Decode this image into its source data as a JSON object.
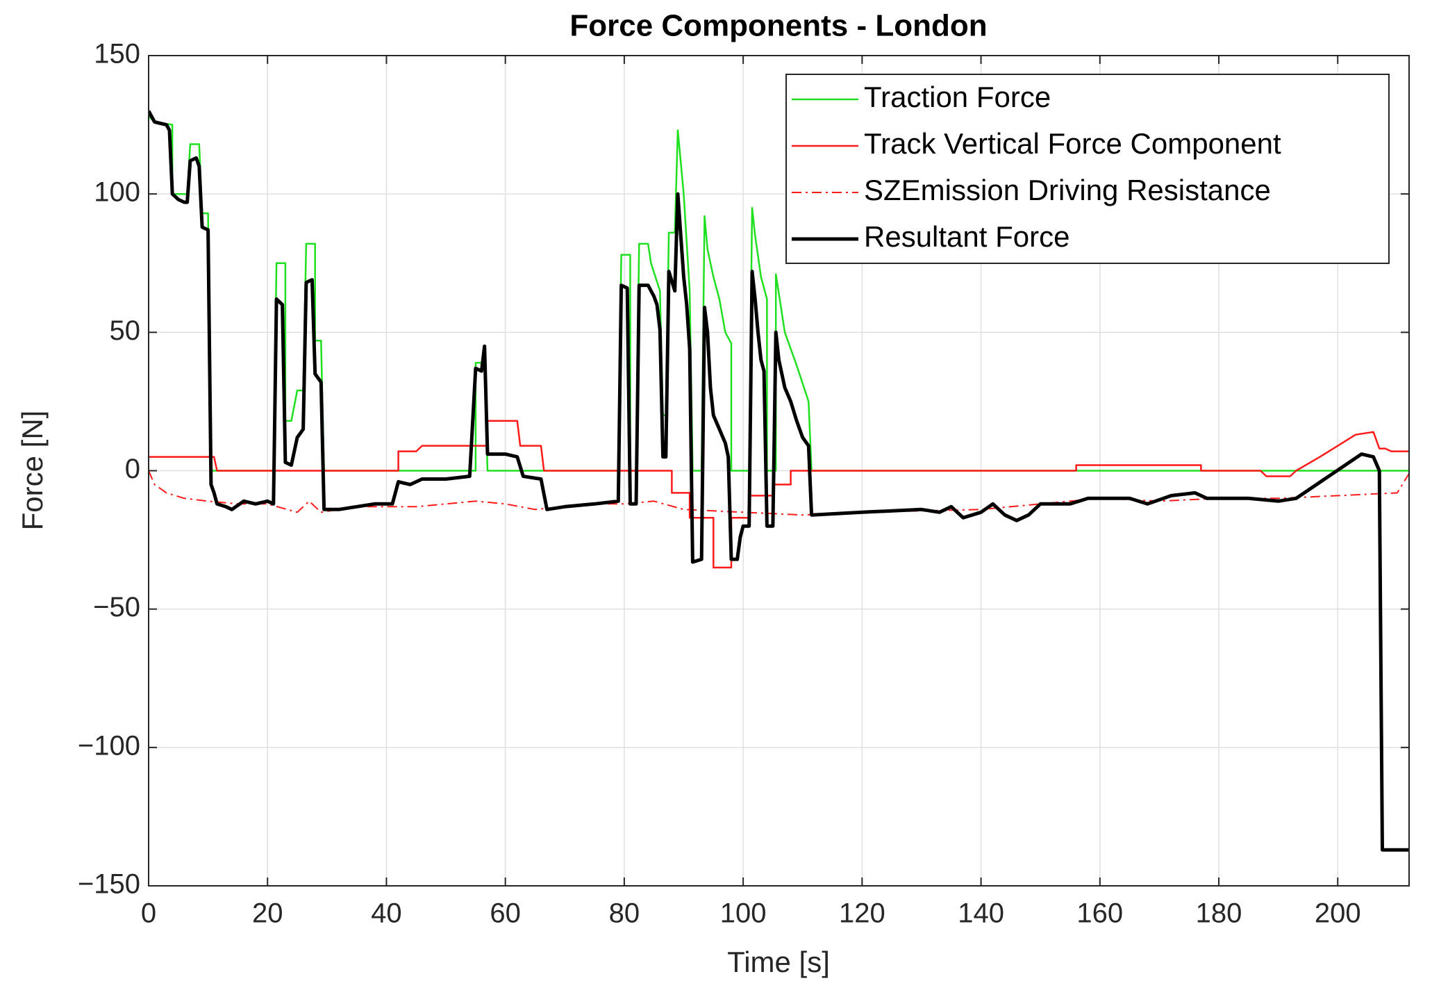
{
  "chart_data": {
    "type": "line",
    "title": "Force Components - London",
    "xlabel": "Time [s]",
    "ylabel": "Force [N]",
    "xlim": [
      0,
      212
    ],
    "ylim": [
      -150,
      150
    ],
    "xticks": [
      0,
      20,
      40,
      60,
      80,
      100,
      120,
      140,
      160,
      180,
      200
    ],
    "yticks": [
      {
        "value": -150,
        "label": "−150"
      },
      {
        "value": -100,
        "label": "−100"
      },
      {
        "value": -50,
        "label": "−50"
      },
      0,
      50,
      100,
      150
    ],
    "grid": true,
    "legend": "northeast",
    "series": [
      {
        "name": "Traction Force",
        "color": "#1ee01e",
        "linestyle": "-",
        "linewidth": 2.5,
        "x": [
          0,
          1,
          4,
          4,
          6,
          6.5,
          7,
          8.5,
          9,
          10,
          10.5,
          21,
          21.5,
          23,
          23,
          24,
          25,
          26,
          26.5,
          28,
          28,
          29,
          29.5,
          55,
          55,
          56.5,
          57,
          79,
          79.5,
          81,
          81,
          82,
          82.5,
          84,
          84.5,
          86,
          86.5,
          87,
          87.5,
          88.5,
          89,
          90,
          91,
          91.5,
          93,
          93.5,
          94,
          95,
          96,
          97,
          98,
          98,
          101,
          101.5,
          102,
          103,
          104,
          104,
          105.5,
          105.5,
          107,
          109,
          111,
          111.5,
          212
        ],
        "values": [
          128,
          126,
          125,
          100,
          100,
          100,
          118,
          118,
          93,
          93,
          0,
          0,
          75,
          75,
          18,
          18,
          29,
          29,
          82,
          82,
          47,
          47,
          0,
          0,
          39,
          39,
          0,
          0,
          78,
          78,
          0,
          0,
          82,
          82,
          75,
          65,
          20,
          20,
          86,
          86,
          123,
          100,
          65,
          0,
          0,
          92,
          80,
          70,
          62,
          50,
          46,
          0,
          0,
          95,
          85,
          70,
          62,
          0,
          0,
          71,
          50,
          38,
          25,
          0,
          0
        ]
      },
      {
        "name": "Track Vertical Force Component",
        "color": "#ff1a1a",
        "linestyle": "-",
        "linewidth": 2.5,
        "x": [
          0,
          11,
          11.5,
          42,
          42,
          45,
          46,
          57,
          57,
          62,
          62.5,
          66,
          66.5,
          88,
          88,
          91,
          91,
          95,
          95,
          98,
          98,
          101,
          101,
          105,
          105,
          108,
          108,
          156,
          156,
          177,
          177,
          187,
          188,
          192,
          193,
          197,
          203,
          206,
          207,
          208,
          209,
          212
        ],
        "values": [
          5,
          5,
          0,
          0,
          7,
          7,
          9,
          9,
          18,
          18,
          9,
          9,
          0,
          0,
          -8,
          -8,
          -17,
          -17,
          -35,
          -35,
          -17,
          -17,
          -9,
          -9,
          -5,
          -5,
          0,
          0,
          2,
          2,
          0,
          0,
          -2,
          -2,
          0,
          5,
          13,
          14,
          8,
          8,
          7,
          7
        ]
      },
      {
        "name": "SZEmission Driving Resistance",
        "color": "#ff1a1a",
        "linestyle": "-.",
        "linewidth": 2,
        "x": [
          0,
          1,
          3,
          6,
          10,
          15,
          20,
          25,
          27,
          29,
          35,
          45,
          50,
          55,
          60,
          65,
          75,
          80,
          85,
          90,
          100,
          110,
          120,
          140,
          150,
          160,
          170,
          180,
          190,
          200,
          210,
          212
        ],
        "values": [
          0,
          -5,
          -8,
          -10,
          -11,
          -12,
          -12,
          -15,
          -11,
          -15,
          -13,
          -13,
          -12,
          -11,
          -12,
          -14,
          -12,
          -12,
          -11,
          -14,
          -15,
          -16,
          -15,
          -14,
          -12,
          -10,
          -11,
          -10,
          -10,
          -9,
          -8,
          -1
        ]
      },
      {
        "name": "Resultant Force",
        "color": "#000000",
        "linestyle": "-",
        "linewidth": 5,
        "x": [
          0,
          1,
          3,
          3.5,
          4,
          5,
          6,
          6.5,
          7,
          8,
          8.5,
          9,
          10,
          10.5,
          11,
          11.5,
          13,
          14,
          16,
          18,
          20,
          21,
          21.5,
          22.5,
          23,
          24,
          25,
          26,
          26.5,
          27.5,
          28,
          29,
          29.5,
          32,
          35,
          38,
          41,
          42,
          44,
          46,
          50,
          54,
          55,
          56,
          56.5,
          57,
          60,
          62,
          63,
          66,
          67,
          70,
          75,
          79,
          79.5,
          80.5,
          81,
          82,
          82.5,
          84,
          84.5,
          85,
          85.5,
          86,
          86.5,
          87,
          87.5,
          88.5,
          89,
          90,
          90.5,
          91,
          91.5,
          93,
          93.5,
          94,
          94.5,
          95,
          96,
          97,
          97.5,
          98,
          99,
          99.5,
          100,
          101,
          101.5,
          102,
          102.5,
          103,
          103.5,
          104,
          105,
          105.5,
          106,
          107,
          108,
          109,
          110,
          111,
          111.5,
          120,
          130,
          133,
          135,
          137,
          140,
          142,
          144,
          146,
          148,
          150,
          155,
          158,
          165,
          168,
          172,
          176,
          178,
          185,
          190,
          193,
          204,
          206,
          207,
          207.5,
          212
        ],
        "values": [
          130,
          126,
          125,
          123,
          100,
          98,
          97,
          97,
          112,
          113,
          110,
          88,
          87,
          -5,
          -8,
          -12,
          -13,
          -14,
          -11,
          -12,
          -11,
          -12,
          62,
          60,
          3,
          2,
          12,
          15,
          68,
          69,
          35,
          32,
          -14,
          -14,
          -13,
          -12,
          -12,
          -4,
          -5,
          -3,
          -3,
          -2,
          37,
          36,
          45,
          6,
          6,
          5,
          -2,
          -3,
          -14,
          -13,
          -12,
          -11,
          67,
          66,
          -12,
          -12,
          67,
          67,
          65,
          63,
          60,
          51,
          5,
          5,
          72,
          65,
          100,
          70,
          60,
          44,
          -33,
          -32,
          59,
          50,
          30,
          20,
          15,
          10,
          5,
          -32,
          -32,
          -24,
          -20,
          -20,
          72,
          62,
          50,
          40,
          36,
          -20,
          -20,
          50,
          40,
          30,
          25,
          18,
          12,
          9,
          -16,
          -15,
          -14,
          -15,
          -13,
          -17,
          -15,
          -12,
          -16,
          -18,
          -16,
          -12,
          -12,
          -10,
          -10,
          -12,
          -9,
          -8,
          -10,
          -10,
          -11,
          -10,
          6,
          5,
          0,
          -137,
          -137
        ]
      }
    ]
  }
}
